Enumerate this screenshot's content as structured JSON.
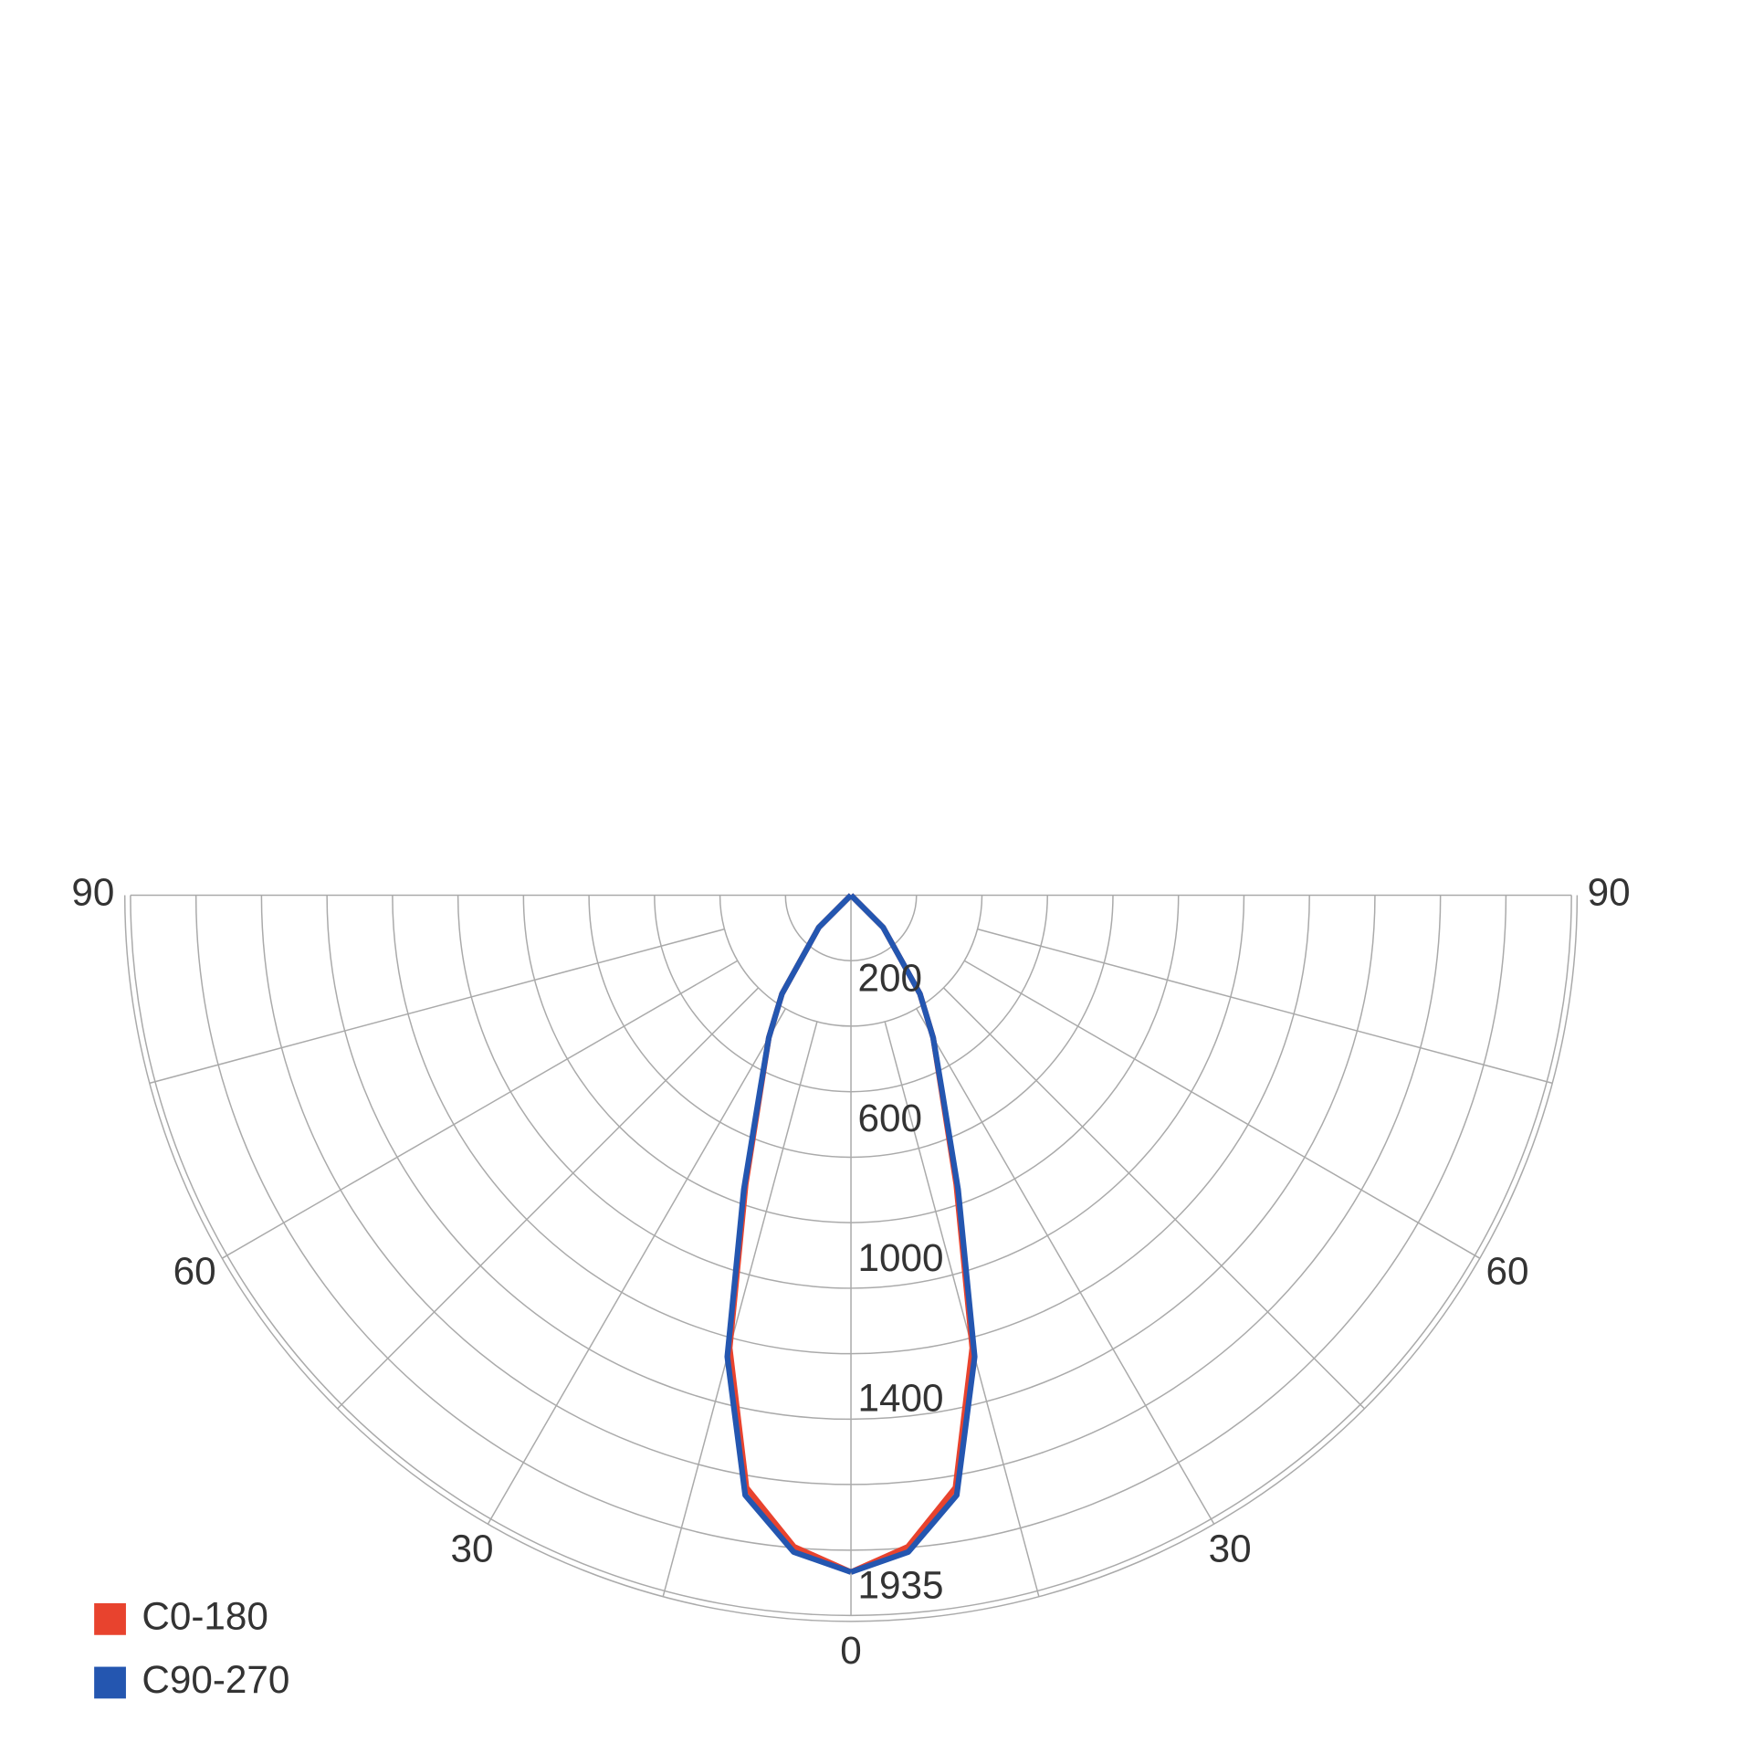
{
  "chart_data": {
    "type": "polar",
    "x": [
      0,
      5,
      10,
      15,
      20,
      25,
      30,
      35,
      45,
      90
    ],
    "angle_ticks": [
      0,
      30,
      60,
      90
    ],
    "rlim": [
      0,
      2060
    ],
    "rticks": [
      200,
      600,
      1000,
      1400,
      1935
    ],
    "series": [
      {
        "name": "C0-180",
        "color": "#e8432e",
        "values": [
          1935,
          1870,
          1720,
          1340,
          880,
          610,
          470,
          344,
          130,
          0
        ]
      },
      {
        "name": "C90-270",
        "color": "#2456b0",
        "values": [
          1935,
          1885,
          1742,
          1366,
          895,
          616,
          470,
          344,
          130,
          0
        ]
      }
    ]
  }
}
